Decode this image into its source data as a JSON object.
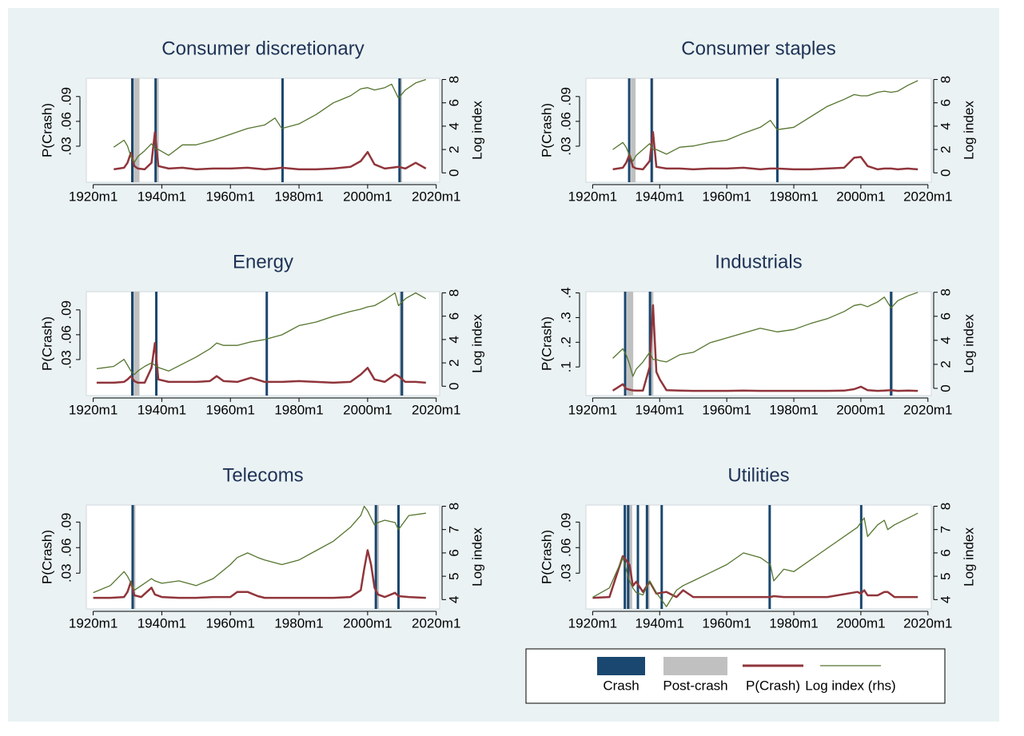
{
  "legend": [
    {
      "name": "Crash",
      "color": "#1a476f"
    },
    {
      "name": "Post-crash",
      "color": "#c0c0c0"
    },
    {
      "name": "P(Crash)",
      "color": "#90353b"
    },
    {
      "name": "Log index (rhs)",
      "color": "#55752f"
    }
  ],
  "chart_data": [
    {
      "type": "line",
      "title": "Consumer discretionary",
      "ylabel": "P(Crash)",
      "y2label": "Log index",
      "x": [
        1926,
        1929,
        1930,
        1931,
        1932,
        1933,
        1935,
        1937,
        1938,
        1939,
        1942,
        1946,
        1950,
        1955,
        1960,
        1965,
        1970,
        1973,
        1975,
        1980,
        1985,
        1990,
        1995,
        1998,
        2000,
        2002,
        2005,
        2007,
        2009,
        2011,
        2014,
        2017
      ],
      "series": [
        {
          "values": [
            0.002,
            0.004,
            0.01,
            0.022,
            0.006,
            0.003,
            0.002,
            0.01,
            0.047,
            0.006,
            0.003,
            0.004,
            0.002,
            0.003,
            0.003,
            0.004,
            0.002,
            0.003,
            0.004,
            0.002,
            0.002,
            0.003,
            0.005,
            0.012,
            0.023,
            0.008,
            0.003,
            0.004,
            0.005,
            0.003,
            0.01,
            0.003
          ]
        },
        {
          "axis": "y2",
          "values": [
            2.2,
            2.8,
            2.3,
            1.4,
            0.9,
            1.4,
            1.9,
            2.5,
            2.1,
            2.0,
            1.5,
            2.4,
            2.4,
            2.8,
            3.3,
            3.8,
            4.1,
            4.7,
            3.8,
            4.2,
            5.0,
            6.0,
            6.6,
            7.2,
            7.3,
            7.1,
            7.3,
            7.6,
            6.4,
            7.1,
            7.7,
            8.0
          ]
        }
      ],
      "crashes": [
        1931.4,
        1938.2,
        1975.2,
        2009.3
      ],
      "post_crash": [
        [
          1931.6,
          1933.5
        ],
        [
          1938.6,
          1939.1
        ],
        [
          2009.3,
          2010.0
        ]
      ],
      "xlim": [
        1918,
        2021
      ],
      "xticks": [
        {
          "value": 1920,
          "label": "1920m1"
        },
        {
          "value": 1940,
          "label": "1940m1"
        },
        {
          "value": 1960,
          "label": "1960m1"
        },
        {
          "value": 1980,
          "label": "1980m1"
        },
        {
          "value": 2000,
          "label": "2000m1"
        },
        {
          "value": 2020,
          "label": "2020m1"
        }
      ],
      "ylim": [
        -0.0135,
        0.112
      ],
      "yticks": [
        {
          "value": 0.03,
          "label": ".03"
        },
        {
          "value": 0.06,
          "label": ".06"
        },
        {
          "value": 0.09,
          "label": ".09"
        }
      ],
      "y2lim": [
        -0.8,
        8.1
      ],
      "y2ticks": [
        0,
        2,
        4,
        6,
        8
      ]
    },
    {
      "type": "line",
      "title": "Consumer staples",
      "ylabel": "P(Crash)",
      "y2label": "Log index",
      "x": [
        1926,
        1929,
        1930,
        1931,
        1932,
        1933,
        1935,
        1937,
        1938,
        1939,
        1942,
        1946,
        1950,
        1955,
        1960,
        1965,
        1970,
        1973,
        1975,
        1980,
        1985,
        1990,
        1995,
        1998,
        2000,
        2002,
        2005,
        2007,
        2009,
        2011,
        2014,
        2017
      ],
      "series": [
        {
          "values": [
            0.002,
            0.004,
            0.01,
            0.02,
            0.005,
            0.003,
            0.002,
            0.012,
            0.047,
            0.005,
            0.003,
            0.003,
            0.002,
            0.003,
            0.003,
            0.004,
            0.002,
            0.003,
            0.003,
            0.002,
            0.002,
            0.003,
            0.004,
            0.016,
            0.017,
            0.006,
            0.002,
            0.003,
            0.003,
            0.002,
            0.003,
            0.002
          ]
        },
        {
          "axis": "y2",
          "values": [
            2.0,
            2.6,
            2.2,
            1.5,
            1.0,
            1.5,
            2.0,
            2.5,
            2.0,
            2.0,
            1.6,
            2.2,
            2.3,
            2.6,
            2.8,
            3.4,
            3.9,
            4.5,
            3.7,
            3.9,
            4.8,
            5.7,
            6.3,
            6.7,
            6.6,
            6.6,
            6.9,
            7.0,
            6.9,
            7.0,
            7.5,
            7.9
          ]
        }
      ],
      "crashes": [
        1930.9,
        1937.6,
        1975.1
      ],
      "post_crash": [
        [
          1931.4,
          1932.8
        ],
        [
          1937.6,
          1938.1
        ]
      ],
      "xlim": [
        1918,
        2021
      ],
      "xticks": [
        {
          "value": 1920,
          "label": "1920m1"
        },
        {
          "value": 1940,
          "label": "1940m1"
        },
        {
          "value": 1960,
          "label": "1960m1"
        },
        {
          "value": 1980,
          "label": "1980m1"
        },
        {
          "value": 2000,
          "label": "2000m1"
        },
        {
          "value": 2020,
          "label": "2020m1"
        }
      ],
      "ylim": [
        -0.0135,
        0.112
      ],
      "yticks": [
        {
          "value": 0.03,
          "label": ".03"
        },
        {
          "value": 0.06,
          "label": ".06"
        },
        {
          "value": 0.09,
          "label": ".09"
        }
      ],
      "y2lim": [
        -0.8,
        8.1
      ],
      "y2ticks": [
        0,
        2,
        4,
        6,
        8
      ]
    },
    {
      "type": "line",
      "title": "Energy",
      "ylabel": "P(Crash)",
      "y2label": "Log index",
      "x": [
        1921,
        1926,
        1929,
        1930,
        1931,
        1932,
        1933,
        1935,
        1937,
        1938,
        1939,
        1942,
        1946,
        1950,
        1954,
        1956,
        1958,
        1962,
        1966,
        1970,
        1975,
        1980,
        1985,
        1990,
        1995,
        1998,
        2000,
        2002,
        2005,
        2008,
        2009,
        2011,
        2014,
        2017
      ],
      "series": [
        {
          "values": [
            0.002,
            0.002,
            0.003,
            0.006,
            0.01,
            0.004,
            0.002,
            0.002,
            0.02,
            0.05,
            0.006,
            0.003,
            0.003,
            0.003,
            0.004,
            0.01,
            0.004,
            0.003,
            0.008,
            0.003,
            0.003,
            0.004,
            0.003,
            0.002,
            0.003,
            0.012,
            0.02,
            0.006,
            0.003,
            0.012,
            0.01,
            0.003,
            0.003,
            0.002
          ]
        },
        {
          "axis": "y2",
          "values": [
            1.5,
            1.7,
            2.3,
            1.8,
            1.3,
            1.0,
            1.3,
            1.7,
            2.0,
            1.8,
            1.6,
            1.3,
            1.9,
            2.5,
            3.2,
            3.7,
            3.5,
            3.5,
            3.8,
            4.0,
            4.4,
            5.2,
            5.5,
            6.0,
            6.4,
            6.6,
            6.8,
            6.9,
            7.4,
            8.0,
            6.9,
            7.5,
            8.0,
            7.5
          ]
        }
      ],
      "crashes": [
        1931.4,
        1938.4,
        1970.6,
        2010.0
      ],
      "post_crash": [
        [
          1931.6,
          1933.5
        ],
        [
          2009.3,
          2010.4
        ]
      ],
      "xlim": [
        1918,
        2021
      ],
      "xticks": [
        {
          "value": 1920,
          "label": "1920m1"
        },
        {
          "value": 1940,
          "label": "1940m1"
        },
        {
          "value": 1960,
          "label": "1960m1"
        },
        {
          "value": 1980,
          "label": "1980m1"
        },
        {
          "value": 2000,
          "label": "2000m1"
        },
        {
          "value": 2020,
          "label": "2020m1"
        }
      ],
      "ylim": [
        -0.0135,
        0.112
      ],
      "yticks": [
        {
          "value": 0.03,
          "label": ".03"
        },
        {
          "value": 0.06,
          "label": ".06"
        },
        {
          "value": 0.09,
          "label": ".09"
        }
      ],
      "y2lim": [
        -0.8,
        8.1
      ],
      "y2ticks": [
        0,
        2,
        4,
        6,
        8
      ]
    },
    {
      "type": "line",
      "title": "Industrials",
      "ylabel": "P(Crash)",
      "y2label": "Log index",
      "x": [
        1926,
        1929,
        1930,
        1931,
        1932,
        1933,
        1935,
        1937,
        1938,
        1939,
        1940,
        1942,
        1946,
        1950,
        1955,
        1960,
        1965,
        1970,
        1975,
        1980,
        1985,
        1990,
        1995,
        1998,
        2000,
        2002,
        2005,
        2007,
        2009,
        2011,
        2014,
        2017
      ],
      "series": [
        {
          "values": [
            0.004,
            0.03,
            0.012,
            0.008,
            0.005,
            0.004,
            0.004,
            0.1,
            0.35,
            0.08,
            0.05,
            0.006,
            0.004,
            0.003,
            0.003,
            0.003,
            0.004,
            0.003,
            0.003,
            0.003,
            0.003,
            0.003,
            0.004,
            0.01,
            0.02,
            0.006,
            0.003,
            0.004,
            0.006,
            0.003,
            0.004,
            0.003
          ]
        },
        {
          "axis": "y2",
          "values": [
            2.5,
            3.3,
            2.8,
            2.0,
            1.0,
            1.6,
            2.2,
            3.0,
            2.4,
            2.4,
            2.3,
            2.2,
            2.8,
            3.0,
            3.8,
            4.2,
            4.6,
            5.0,
            4.7,
            4.9,
            5.4,
            5.8,
            6.4,
            6.9,
            7.0,
            6.8,
            7.2,
            7.6,
            6.7,
            7.3,
            7.7,
            8.0
          ]
        }
      ],
      "crashes": [
        1929.7,
        1937.1,
        2009.0
      ],
      "post_crash": [
        [
          1930.2,
          1932.1
        ],
        [
          1937.1,
          1938.1
        ],
        [
          2009.0,
          2009.6
        ]
      ],
      "xlim": [
        1918,
        2021
      ],
      "xticks": [
        {
          "value": 1920,
          "label": "1920m1"
        },
        {
          "value": 1940,
          "label": "1940m1"
        },
        {
          "value": 1960,
          "label": "1960m1"
        },
        {
          "value": 1980,
          "label": "1980m1"
        },
        {
          "value": 2000,
          "label": "2000m1"
        },
        {
          "value": 2020,
          "label": "2020m1"
        }
      ],
      "ylim": [
        -0.016,
        0.405
      ],
      "yticks": [
        {
          "value": 0.1,
          "label": ".1"
        },
        {
          "value": 0.2,
          "label": ".2"
        },
        {
          "value": 0.3,
          "label": ".3"
        },
        {
          "value": 0.4,
          "label": ".4"
        }
      ],
      "y2lim": [
        -0.6,
        8.05
      ],
      "y2ticks": [
        0,
        2,
        4,
        6,
        8
      ]
    },
    {
      "type": "line",
      "title": "Telecoms",
      "ylabel": "P(Crash)",
      "y2label": "Log index",
      "x": [
        1920,
        1925,
        1929,
        1930,
        1931,
        1932,
        1934,
        1937,
        1938,
        1940,
        1945,
        1950,
        1955,
        1960,
        1962,
        1965,
        1968,
        1970,
        1975,
        1980,
        1985,
        1990,
        1995,
        1998,
        1999,
        2000,
        2001,
        2002,
        2003,
        2005,
        2008,
        2009,
        2012,
        2017
      ],
      "series": [
        {
          "values": [
            0.001,
            0.001,
            0.002,
            0.008,
            0.02,
            0.004,
            0.002,
            0.013,
            0.005,
            0.002,
            0.001,
            0.001,
            0.002,
            0.002,
            0.008,
            0.008,
            0.003,
            0.001,
            0.001,
            0.001,
            0.001,
            0.001,
            0.002,
            0.01,
            0.035,
            0.057,
            0.04,
            0.013,
            0.005,
            0.002,
            0.007,
            0.003,
            0.002,
            0.001
          ]
        },
        {
          "axis": "y2",
          "values": [
            4.3,
            4.6,
            5.2,
            5.0,
            4.7,
            4.4,
            4.6,
            4.9,
            4.8,
            4.7,
            4.8,
            4.6,
            4.9,
            5.5,
            5.8,
            6.0,
            5.8,
            5.7,
            5.5,
            5.7,
            6.1,
            6.5,
            7.1,
            7.6,
            8.0,
            7.8,
            7.5,
            7.2,
            7.3,
            7.4,
            7.3,
            7.0,
            7.6,
            7.7
          ]
        }
      ],
      "crashes": [
        1931.5,
        2002.4,
        2009.0
      ],
      "post_crash": [
        [
          1931.5,
          1932.3
        ],
        [
          2002.4,
          2003.3
        ]
      ],
      "xlim": [
        1918,
        2021
      ],
      "xticks": [
        {
          "value": 1920,
          "label": "1920m1"
        },
        {
          "value": 1940,
          "label": "1940m1"
        },
        {
          "value": 1960,
          "label": "1960m1"
        },
        {
          "value": 1980,
          "label": "1980m1"
        },
        {
          "value": 2000,
          "label": "2000m1"
        },
        {
          "value": 2020,
          "label": "2020m1"
        }
      ],
      "ylim": [
        -0.012,
        0.11
      ],
      "yticks": [
        {
          "value": 0.03,
          "label": ".03"
        },
        {
          "value": 0.06,
          "label": ".06"
        },
        {
          "value": 0.09,
          "label": ".09"
        }
      ],
      "y2lim": [
        3.6,
        8.05
      ],
      "y2ticks": [
        4,
        5,
        6,
        7,
        8
      ]
    },
    {
      "type": "line",
      "title": "Utilities",
      "ylabel": "P(Crash)",
      "y2label": "Log index",
      "x": [
        1920,
        1925,
        1929,
        1930,
        1931,
        1932,
        1933,
        1935,
        1937,
        1939,
        1942,
        1945,
        1947,
        1950,
        1960,
        1965,
        1970,
        1973,
        1974,
        1977,
        1980,
        1990,
        1999,
        2000,
        2001,
        2002,
        2005,
        2007,
        2008,
        2010,
        2017
      ],
      "series": [
        {
          "values": [
            0.001,
            0.002,
            0.05,
            0.045,
            0.04,
            0.015,
            0.02,
            0.008,
            0.02,
            0.006,
            0.008,
            0.002,
            0.01,
            0.002,
            0.002,
            0.002,
            0.002,
            0.002,
            0.003,
            0.002,
            0.002,
            0.002,
            0.008,
            0.006,
            0.01,
            0.004,
            0.004,
            0.008,
            0.008,
            0.002,
            0.002
          ]
        },
        {
          "axis": "y2",
          "values": [
            4.1,
            4.5,
            5.8,
            5.3,
            4.8,
            4.5,
            4.3,
            4.2,
            4.8,
            4.3,
            3.7,
            4.4,
            4.6,
            4.8,
            5.5,
            6.0,
            5.8,
            5.5,
            4.8,
            5.3,
            5.2,
            6.2,
            7.1,
            7.3,
            7.5,
            6.7,
            7.2,
            7.4,
            7.0,
            7.2,
            7.7
          ]
        }
      ],
      "crashes": [
        1929.6,
        1930.6,
        1933.5,
        1936.2,
        1940.6,
        1972.8,
        2000.1
      ],
      "post_crash": [
        [
          1930.1,
          1931.8
        ],
        [
          1936.2,
          1937.0
        ]
      ],
      "xlim": [
        1918,
        2021
      ],
      "xticks": [
        {
          "value": 1920,
          "label": "1920m1"
        },
        {
          "value": 1940,
          "label": "1940m1"
        },
        {
          "value": 1960,
          "label": "1960m1"
        },
        {
          "value": 1980,
          "label": "1980m1"
        },
        {
          "value": 2000,
          "label": "2000m1"
        },
        {
          "value": 2020,
          "label": "2020m1"
        }
      ],
      "ylim": [
        -0.012,
        0.11
      ],
      "yticks": [
        {
          "value": 0.03,
          "label": ".03"
        },
        {
          "value": 0.06,
          "label": ".06"
        },
        {
          "value": 0.09,
          "label": ".09"
        }
      ],
      "y2lim": [
        3.6,
        8.05
      ],
      "y2ticks": [
        4,
        5,
        6,
        7,
        8
      ]
    }
  ]
}
